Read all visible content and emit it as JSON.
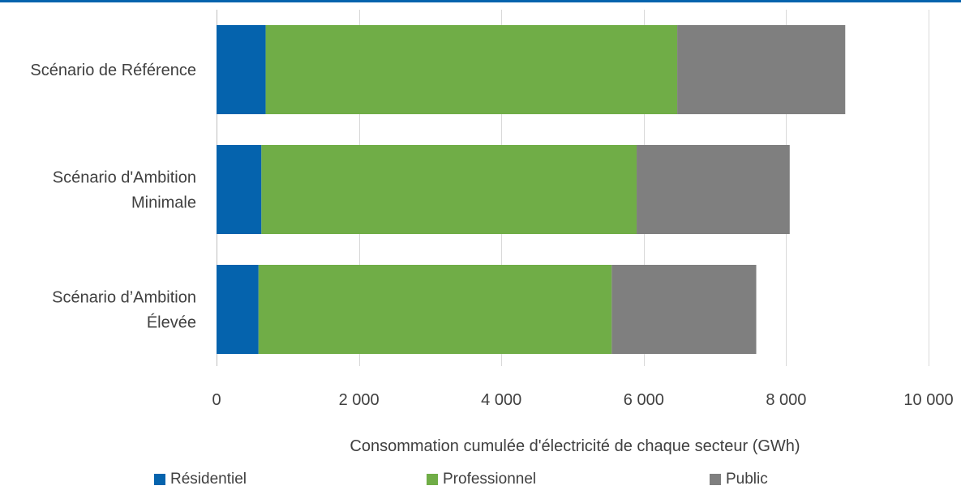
{
  "colors": {
    "top_rule": "#0563ad",
    "grid": "#d9d9d9",
    "axis": "#bfbfbf"
  },
  "chart_data": {
    "type": "bar",
    "orientation": "horizontal",
    "stacked": true,
    "categories": [
      [
        "Scénario de Référence"
      ],
      [
        "Scénario d'Ambition",
        "Minimale"
      ],
      [
        "Scénario d’Ambition",
        "Élevée"
      ]
    ],
    "series": [
      {
        "name": "Résidentiel",
        "color": "#0563ad",
        "values": [
          690,
          630,
          590
        ]
      },
      {
        "name": "Professionnel",
        "color": "#70ad47",
        "values": [
          5780,
          5270,
          4960
        ]
      },
      {
        "name": "Public",
        "color": "#7f7f7f",
        "values": [
          2360,
          2150,
          2030
        ]
      }
    ],
    "xlabel": "Consommation cumulée d'électricité de chaque secteur (GWh)",
    "xlim": [
      0,
      10000
    ],
    "xticks": [
      0,
      2000,
      4000,
      6000,
      8000,
      10000
    ],
    "xtick_labels": [
      "0",
      "2 000",
      "4 000",
      "6 000",
      "8 000",
      "10 000"
    ],
    "grid": "vertical",
    "legend": "bottom"
  }
}
